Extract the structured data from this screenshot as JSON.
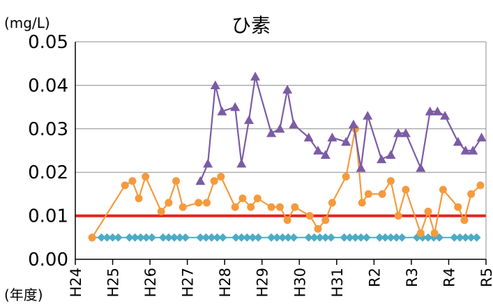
{
  "chart_data": {
    "type": "line",
    "title": "ひ素",
    "ylabel": "(mg/L)",
    "xlabel": "(年度)",
    "ylim": [
      0,
      0.05
    ],
    "yticks": [
      "0.00",
      "0.01",
      "0.02",
      "0.03",
      "0.04",
      "0.05"
    ],
    "xticks": [
      "H24",
      "H25",
      "H26",
      "H27",
      "H28",
      "H29",
      "H30",
      "H31",
      "R2",
      "R3",
      "R4",
      "R5"
    ],
    "xlim": [
      0,
      11
    ],
    "grid": true,
    "standard_line": {
      "value": 0.01,
      "color": "#e8201e"
    },
    "series": [
      {
        "color": "#7b5ba6",
        "marker": "triangle",
        "points": [
          [
            3.35,
            0.018
          ],
          [
            3.55,
            0.022
          ],
          [
            3.75,
            0.04
          ],
          [
            3.93,
            0.034
          ],
          [
            4.28,
            0.035
          ],
          [
            4.45,
            0.022
          ],
          [
            4.65,
            0.032
          ],
          [
            4.82,
            0.042
          ],
          [
            5.25,
            0.029
          ],
          [
            5.48,
            0.03
          ],
          [
            5.68,
            0.039
          ],
          [
            5.85,
            0.031
          ],
          [
            6.25,
            0.028
          ],
          [
            6.5,
            0.025
          ],
          [
            6.7,
            0.024
          ],
          [
            6.88,
            0.028
          ],
          [
            7.25,
            0.027
          ],
          [
            7.45,
            0.031
          ],
          [
            7.65,
            0.021
          ],
          [
            7.83,
            0.033
          ],
          [
            8.2,
            0.023
          ],
          [
            8.45,
            0.024
          ],
          [
            8.65,
            0.029
          ],
          [
            8.85,
            0.029
          ],
          [
            9.25,
            0.021
          ],
          [
            9.5,
            0.034
          ],
          [
            9.7,
            0.034
          ],
          [
            9.9,
            0.033
          ],
          [
            10.25,
            0.027
          ],
          [
            10.45,
            0.025
          ],
          [
            10.65,
            0.025
          ],
          [
            10.88,
            0.028
          ]
        ]
      },
      {
        "color": "#f59a3c",
        "marker": "circle",
        "points": [
          [
            0.45,
            0.005
          ],
          [
            1.33,
            0.017
          ],
          [
            1.53,
            0.018
          ],
          [
            1.7,
            0.014
          ],
          [
            1.88,
            0.019
          ],
          [
            2.3,
            0.011
          ],
          [
            2.5,
            0.013
          ],
          [
            2.7,
            0.018
          ],
          [
            2.88,
            0.012
          ],
          [
            3.3,
            0.013
          ],
          [
            3.52,
            0.013
          ],
          [
            3.72,
            0.018
          ],
          [
            3.9,
            0.019
          ],
          [
            4.28,
            0.012
          ],
          [
            4.48,
            0.014
          ],
          [
            4.7,
            0.012
          ],
          [
            4.88,
            0.014
          ],
          [
            5.25,
            0.012
          ],
          [
            5.48,
            0.012
          ],
          [
            5.68,
            0.009
          ],
          [
            5.88,
            0.012
          ],
          [
            6.28,
            0.01
          ],
          [
            6.5,
            0.007
          ],
          [
            6.7,
            0.009
          ],
          [
            6.88,
            0.013
          ],
          [
            7.25,
            0.019
          ],
          [
            7.5,
            0.03
          ],
          [
            7.68,
            0.013
          ],
          [
            7.85,
            0.015
          ],
          [
            8.22,
            0.015
          ],
          [
            8.45,
            0.018
          ],
          [
            8.65,
            0.01
          ],
          [
            8.85,
            0.016
          ],
          [
            9.25,
            0.006
          ],
          [
            9.45,
            0.011
          ],
          [
            9.62,
            0.006
          ],
          [
            9.85,
            0.016
          ],
          [
            10.25,
            0.012
          ],
          [
            10.42,
            0.009
          ],
          [
            10.6,
            0.015
          ],
          [
            10.85,
            0.017
          ]
        ]
      },
      {
        "color": "#4bacc6",
        "marker": "diamond",
        "points": [
          [
            0.45,
            0.005
          ],
          [
            0.7,
            0.005
          ],
          [
            0.85,
            0.005
          ],
          [
            1.0,
            0.005
          ],
          [
            1.15,
            0.005
          ],
          [
            1.45,
            0.005
          ],
          [
            1.6,
            0.005
          ],
          [
            1.75,
            0.005
          ],
          [
            1.9,
            0.005
          ],
          [
            2.05,
            0.005
          ],
          [
            2.35,
            0.005
          ],
          [
            2.5,
            0.005
          ],
          [
            2.65,
            0.005
          ],
          [
            2.8,
            0.005
          ],
          [
            2.95,
            0.005
          ],
          [
            3.35,
            0.005
          ],
          [
            3.5,
            0.005
          ],
          [
            3.65,
            0.005
          ],
          [
            3.8,
            0.005
          ],
          [
            3.95,
            0.005
          ],
          [
            4.3,
            0.005
          ],
          [
            4.45,
            0.005
          ],
          [
            4.6,
            0.005
          ],
          [
            4.75,
            0.005
          ],
          [
            4.9,
            0.005
          ],
          [
            5.25,
            0.005
          ],
          [
            5.4,
            0.005
          ],
          [
            5.55,
            0.005
          ],
          [
            5.7,
            0.005
          ],
          [
            5.85,
            0.005
          ],
          [
            6.25,
            0.005
          ],
          [
            6.4,
            0.005
          ],
          [
            6.55,
            0.005
          ],
          [
            6.7,
            0.005
          ],
          [
            6.85,
            0.005
          ],
          [
            7.2,
            0.005
          ],
          [
            7.35,
            0.005
          ],
          [
            7.5,
            0.005
          ],
          [
            7.65,
            0.005
          ],
          [
            7.8,
            0.005
          ],
          [
            8.15,
            0.005
          ],
          [
            8.3,
            0.005
          ],
          [
            8.45,
            0.005
          ],
          [
            8.6,
            0.005
          ],
          [
            8.75,
            0.005
          ],
          [
            9.15,
            0.005
          ],
          [
            9.3,
            0.005
          ],
          [
            9.45,
            0.005
          ],
          [
            9.6,
            0.005
          ],
          [
            9.75,
            0.005
          ],
          [
            10.15,
            0.005
          ],
          [
            10.3,
            0.005
          ],
          [
            10.45,
            0.005
          ],
          [
            10.6,
            0.005
          ],
          [
            10.75,
            0.005
          ]
        ]
      }
    ]
  }
}
